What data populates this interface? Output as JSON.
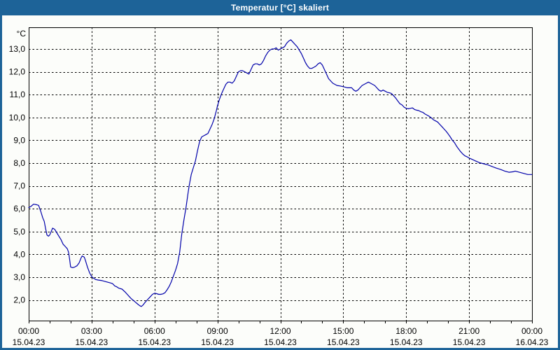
{
  "window": {
    "title": "Temperatur [°C] skaliert"
  },
  "colors": {
    "titlebar": "#1d6398",
    "frame": "#1d6398",
    "panel_background": "#fcfdfa",
    "plot_background": "#fcfdfa",
    "grid": "#000000",
    "axis": "#000000",
    "text": "#000000",
    "line": "#0000aa"
  },
  "chart_data": {
    "type": "line",
    "title": "Temperatur [°C] skaliert",
    "ylabel": "°C",
    "xlabel": "",
    "grid": true,
    "legend": "none",
    "x_range_hours": [
      0,
      24
    ],
    "ylim": [
      1.1,
      13.95
    ],
    "minor_x_tick_every_hours": 1,
    "x_ticks": [
      {
        "hour": 0,
        "time": "00:00",
        "date": "15.04.23"
      },
      {
        "hour": 3,
        "time": "03:00",
        "date": "15.04.23"
      },
      {
        "hour": 6,
        "time": "06:00",
        "date": "15.04.23"
      },
      {
        "hour": 9,
        "time": "09:00",
        "date": "15.04.23"
      },
      {
        "hour": 12,
        "time": "12:00",
        "date": "15.04.23"
      },
      {
        "hour": 15,
        "time": "15:00",
        "date": "15.04.23"
      },
      {
        "hour": 18,
        "time": "18:00",
        "date": "15.04.23"
      },
      {
        "hour": 21,
        "time": "21:00",
        "date": "15.04.23"
      },
      {
        "hour": 24,
        "time": "00:00",
        "date": "16.04.23"
      }
    ],
    "y_ticks": [
      {
        "value": 13,
        "label": "13,0"
      },
      {
        "value": 12,
        "label": "12,0"
      },
      {
        "value": 11,
        "label": "11,0"
      },
      {
        "value": 10,
        "label": "10,0"
      },
      {
        "value": 9,
        "label": "9,0"
      },
      {
        "value": 8,
        "label": "8,0"
      },
      {
        "value": 7,
        "label": "7,0"
      },
      {
        "value": 6,
        "label": "6,0"
      },
      {
        "value": 5,
        "label": "5,0"
      },
      {
        "value": 4,
        "label": "4,0"
      },
      {
        "value": 3,
        "label": "3,0"
      },
      {
        "value": 2,
        "label": "2,0"
      }
    ],
    "series": [
      {
        "name": "Temperatur",
        "color": "#0000aa",
        "points": [
          [
            0,
            6.05
          ],
          [
            0.1,
            6.1
          ],
          [
            0.23,
            6.2
          ],
          [
            0.37,
            6.18
          ],
          [
            0.47,
            6.15
          ],
          [
            0.57,
            5.9
          ],
          [
            0.67,
            5.6
          ],
          [
            0.74,
            5.45
          ],
          [
            0.8,
            5.15
          ],
          [
            0.87,
            4.85
          ],
          [
            0.94,
            4.8
          ],
          [
            1.0,
            4.85
          ],
          [
            1.07,
            5.0
          ],
          [
            1.14,
            5.15
          ],
          [
            1.24,
            5.1
          ],
          [
            1.34,
            4.95
          ],
          [
            1.44,
            4.8
          ],
          [
            1.54,
            4.65
          ],
          [
            1.64,
            4.45
          ],
          [
            1.74,
            4.35
          ],
          [
            1.84,
            4.25
          ],
          [
            1.9,
            4.1
          ],
          [
            1.95,
            3.8
          ],
          [
            2.0,
            3.45
          ],
          [
            2.1,
            3.42
          ],
          [
            2.2,
            3.45
          ],
          [
            2.3,
            3.5
          ],
          [
            2.4,
            3.62
          ],
          [
            2.5,
            3.85
          ],
          [
            2.55,
            3.93
          ],
          [
            2.65,
            3.88
          ],
          [
            2.7,
            3.75
          ],
          [
            2.8,
            3.45
          ],
          [
            2.9,
            3.2
          ],
          [
            3.0,
            3.03
          ],
          [
            3.1,
            2.95
          ],
          [
            3.2,
            2.9
          ],
          [
            3.3,
            2.88
          ],
          [
            3.5,
            2.85
          ],
          [
            3.7,
            2.8
          ],
          [
            3.9,
            2.75
          ],
          [
            4.0,
            2.72
          ],
          [
            4.1,
            2.62
          ],
          [
            4.2,
            2.58
          ],
          [
            4.3,
            2.52
          ],
          [
            4.45,
            2.48
          ],
          [
            4.6,
            2.35
          ],
          [
            4.7,
            2.25
          ],
          [
            4.8,
            2.15
          ],
          [
            4.9,
            2.05
          ],
          [
            5.0,
            1.98
          ],
          [
            5.1,
            1.9
          ],
          [
            5.2,
            1.82
          ],
          [
            5.3,
            1.75
          ],
          [
            5.37,
            1.72
          ],
          [
            5.45,
            1.78
          ],
          [
            5.55,
            1.9
          ],
          [
            5.7,
            2.05
          ],
          [
            5.8,
            2.15
          ],
          [
            5.9,
            2.25
          ],
          [
            6.0,
            2.3
          ],
          [
            6.1,
            2.28
          ],
          [
            6.2,
            2.25
          ],
          [
            6.3,
            2.25
          ],
          [
            6.4,
            2.27
          ],
          [
            6.5,
            2.32
          ],
          [
            6.6,
            2.45
          ],
          [
            6.7,
            2.6
          ],
          [
            6.8,
            2.8
          ],
          [
            6.9,
            3.05
          ],
          [
            7.0,
            3.3
          ],
          [
            7.1,
            3.6
          ],
          [
            7.2,
            4.1
          ],
          [
            7.3,
            4.9
          ],
          [
            7.4,
            5.5
          ],
          [
            7.5,
            6.05
          ],
          [
            7.6,
            6.7
          ],
          [
            7.65,
            7.0
          ],
          [
            7.75,
            7.5
          ],
          [
            7.85,
            7.8
          ],
          [
            7.95,
            8.1
          ],
          [
            8.05,
            8.55
          ],
          [
            8.15,
            8.95
          ],
          [
            8.25,
            9.15
          ],
          [
            8.35,
            9.2
          ],
          [
            8.45,
            9.25
          ],
          [
            8.55,
            9.3
          ],
          [
            8.65,
            9.5
          ],
          [
            8.75,
            9.7
          ],
          [
            8.85,
            9.95
          ],
          [
            8.95,
            10.3
          ],
          [
            9.0,
            10.5
          ],
          [
            9.1,
            10.8
          ],
          [
            9.2,
            11.05
          ],
          [
            9.3,
            11.25
          ],
          [
            9.4,
            11.45
          ],
          [
            9.5,
            11.55
          ],
          [
            9.6,
            11.55
          ],
          [
            9.7,
            11.5
          ],
          [
            9.8,
            11.6
          ],
          [
            9.9,
            11.8
          ],
          [
            10.0,
            12.0
          ],
          [
            10.1,
            12.05
          ],
          [
            10.2,
            12.05
          ],
          [
            10.3,
            12.0
          ],
          [
            10.4,
            11.95
          ],
          [
            10.5,
            11.9
          ],
          [
            10.6,
            12.1
          ],
          [
            10.7,
            12.3
          ],
          [
            10.8,
            12.35
          ],
          [
            10.9,
            12.35
          ],
          [
            11.0,
            12.3
          ],
          [
            11.1,
            12.35
          ],
          [
            11.2,
            12.5
          ],
          [
            11.3,
            12.7
          ],
          [
            11.4,
            12.85
          ],
          [
            11.5,
            12.95
          ],
          [
            11.6,
            13.0
          ],
          [
            11.7,
            13.0
          ],
          [
            11.8,
            13.05
          ],
          [
            11.9,
            12.95
          ],
          [
            12.0,
            13.0
          ],
          [
            12.1,
            13.05
          ],
          [
            12.2,
            13.1
          ],
          [
            12.3,
            13.25
          ],
          [
            12.4,
            13.35
          ],
          [
            12.5,
            13.4
          ],
          [
            12.6,
            13.3
          ],
          [
            12.7,
            13.2
          ],
          [
            12.8,
            13.1
          ],
          [
            12.9,
            12.95
          ],
          [
            13.0,
            12.8
          ],
          [
            13.1,
            12.6
          ],
          [
            13.2,
            12.4
          ],
          [
            13.3,
            12.25
          ],
          [
            13.4,
            12.15
          ],
          [
            13.5,
            12.15
          ],
          [
            13.6,
            12.2
          ],
          [
            13.7,
            12.25
          ],
          [
            13.8,
            12.35
          ],
          [
            13.9,
            12.4
          ],
          [
            14.0,
            12.3
          ],
          [
            14.1,
            12.1
          ],
          [
            14.2,
            11.9
          ],
          [
            14.3,
            11.7
          ],
          [
            14.4,
            11.6
          ],
          [
            14.5,
            11.5
          ],
          [
            14.6,
            11.45
          ],
          [
            14.7,
            11.4
          ],
          [
            14.85,
            11.38
          ],
          [
            15.0,
            11.35
          ],
          [
            15.2,
            11.3
          ],
          [
            15.4,
            11.3
          ],
          [
            15.5,
            11.2
          ],
          [
            15.6,
            11.15
          ],
          [
            15.7,
            11.2
          ],
          [
            15.8,
            11.3
          ],
          [
            15.9,
            11.4
          ],
          [
            16.0,
            11.45
          ],
          [
            16.1,
            11.5
          ],
          [
            16.2,
            11.55
          ],
          [
            16.3,
            11.5
          ],
          [
            16.4,
            11.45
          ],
          [
            16.5,
            11.4
          ],
          [
            16.6,
            11.3
          ],
          [
            16.7,
            11.2
          ],
          [
            16.8,
            11.15
          ],
          [
            16.9,
            11.2
          ],
          [
            17.0,
            11.15
          ],
          [
            17.1,
            11.1
          ],
          [
            17.2,
            11.08
          ],
          [
            17.3,
            11.05
          ],
          [
            17.4,
            10.95
          ],
          [
            17.5,
            10.85
          ],
          [
            17.6,
            10.72
          ],
          [
            17.7,
            10.6
          ],
          [
            17.8,
            10.55
          ],
          [
            17.9,
            10.45
          ],
          [
            18.0,
            10.4
          ],
          [
            18.1,
            10.38
          ],
          [
            18.2,
            10.4
          ],
          [
            18.3,
            10.42
          ],
          [
            18.4,
            10.35
          ],
          [
            18.5,
            10.32
          ],
          [
            18.6,
            10.3
          ],
          [
            18.7,
            10.25
          ],
          [
            18.8,
            10.22
          ],
          [
            18.9,
            10.15
          ],
          [
            19.0,
            10.1
          ],
          [
            19.1,
            10.05
          ],
          [
            19.2,
            9.98
          ],
          [
            19.3,
            9.9
          ],
          [
            19.4,
            9.85
          ],
          [
            19.5,
            9.8
          ],
          [
            19.6,
            9.7
          ],
          [
            19.7,
            9.6
          ],
          [
            19.8,
            9.5
          ],
          [
            19.9,
            9.4
          ],
          [
            20.0,
            9.28
          ],
          [
            20.1,
            9.15
          ],
          [
            20.2,
            9.0
          ],
          [
            20.3,
            8.9
          ],
          [
            20.4,
            8.75
          ],
          [
            20.5,
            8.62
          ],
          [
            20.6,
            8.5
          ],
          [
            20.7,
            8.4
          ],
          [
            20.8,
            8.32
          ],
          [
            20.9,
            8.28
          ],
          [
            21.0,
            8.22
          ],
          [
            21.1,
            8.18
          ],
          [
            21.3,
            8.1
          ],
          [
            21.5,
            8.02
          ],
          [
            21.7,
            7.97
          ],
          [
            21.9,
            7.92
          ],
          [
            22.1,
            7.85
          ],
          [
            22.3,
            7.78
          ],
          [
            22.5,
            7.72
          ],
          [
            22.7,
            7.65
          ],
          [
            22.9,
            7.6
          ],
          [
            23.1,
            7.62
          ],
          [
            23.2,
            7.65
          ],
          [
            23.4,
            7.6
          ],
          [
            23.6,
            7.55
          ],
          [
            23.8,
            7.5
          ],
          [
            24.0,
            7.5
          ]
        ]
      }
    ]
  }
}
